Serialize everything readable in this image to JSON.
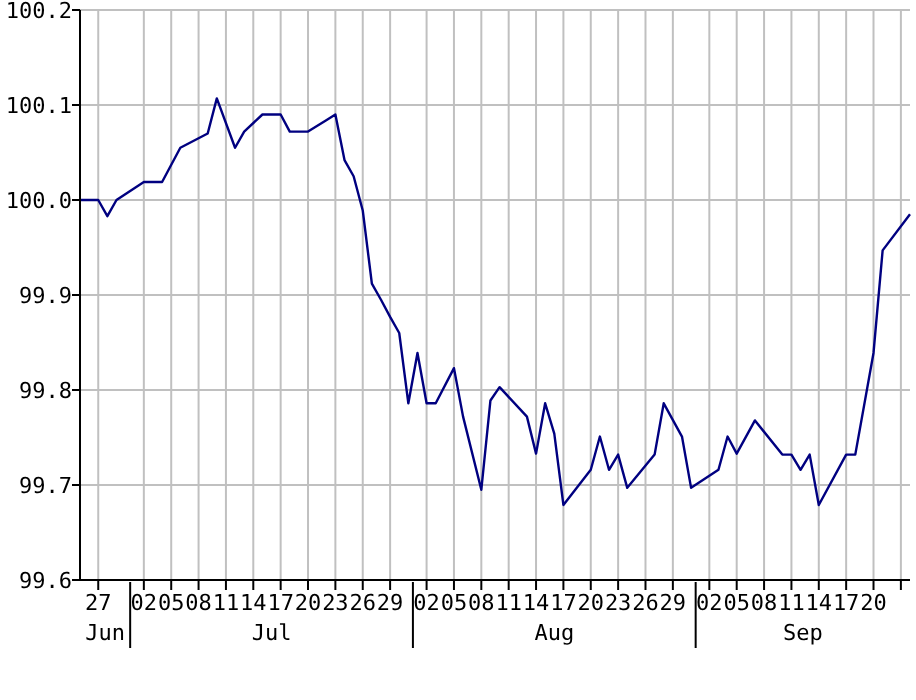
{
  "chart_data": {
    "type": "line",
    "x": [
      "--06-25",
      "--06-27",
      "--06-28",
      "--06-29",
      "--07-02",
      "--07-04",
      "--07-06",
      "--07-09",
      "--07-10",
      "--07-12",
      "--07-13",
      "--07-15",
      "--07-17",
      "--07-18",
      "--07-20",
      "--07-22",
      "--07-23",
      "--07-24",
      "--07-25",
      "--07-26",
      "--07-27",
      "--07-28",
      "--07-29",
      "--07-30",
      "--07-31",
      "--08-01",
      "--08-02",
      "--08-03",
      "--08-05",
      "--08-06",
      "--08-08",
      "--08-09",
      "--08-10",
      "--08-13",
      "--08-14",
      "--08-15",
      "--08-16",
      "--08-17",
      "--08-20",
      "--08-21",
      "--08-22",
      "--08-23",
      "--08-24",
      "--08-27",
      "--08-28",
      "--08-30",
      "--08-31",
      "--09-03",
      "--09-04",
      "--09-05",
      "--09-07",
      "--09-10",
      "--09-11",
      "--09-12",
      "--09-13",
      "--09-14",
      "--09-17",
      "--09-18",
      "--09-20",
      "--09-21",
      "--09-24"
    ],
    "series": [
      {
        "color": "#000080",
        "values": [
          100.0,
          100.0,
          99.983,
          100.0,
          100.019,
          100.019,
          100.055,
          100.07,
          100.107,
          100.055,
          100.072,
          100.09,
          100.09,
          100.072,
          100.072,
          100.084,
          100.09,
          100.042,
          100.025,
          99.989,
          99.912,
          99.895,
          99.877,
          99.86,
          99.786,
          99.839,
          99.786,
          99.786,
          99.823,
          99.772,
          99.695,
          99.789,
          99.803,
          99.772,
          99.733,
          99.786,
          99.754,
          99.679,
          99.716,
          99.751,
          99.716,
          99.732,
          99.697,
          99.732,
          99.786,
          99.751,
          99.697,
          99.716,
          99.751,
          99.733,
          99.768,
          99.732,
          99.732,
          99.716,
          99.732,
          99.679,
          99.732,
          99.732,
          99.839,
          99.947,
          99.985
        ]
      }
    ],
    "xlim": [
      "--06-25",
      "--09-24"
    ],
    "xticks": [
      {
        "value": "--06-27",
        "label": "27"
      },
      {
        "value": "--07-02",
        "label": "02"
      },
      {
        "value": "--07-05",
        "label": "05"
      },
      {
        "value": "--07-08",
        "label": "08"
      },
      {
        "value": "--07-11",
        "label": "11"
      },
      {
        "value": "--07-14",
        "label": "14"
      },
      {
        "value": "--07-17",
        "label": "17"
      },
      {
        "value": "--07-20",
        "label": "20"
      },
      {
        "value": "--07-23",
        "label": "23"
      },
      {
        "value": "--07-26",
        "label": "26"
      },
      {
        "value": "--07-29",
        "label": "29"
      },
      {
        "value": "--08-02",
        "label": "02"
      },
      {
        "value": "--08-05",
        "label": "05"
      },
      {
        "value": "--08-08",
        "label": "08"
      },
      {
        "value": "--08-11",
        "label": "11"
      },
      {
        "value": "--08-14",
        "label": "14"
      },
      {
        "value": "--08-17",
        "label": "17"
      },
      {
        "value": "--08-20",
        "label": "20"
      },
      {
        "value": "--08-23",
        "label": "23"
      },
      {
        "value": "--08-26",
        "label": "26"
      },
      {
        "value": "--08-29",
        "label": "29"
      },
      {
        "value": "--09-02",
        "label": "02"
      },
      {
        "value": "--09-05",
        "label": "05"
      },
      {
        "value": "--09-08",
        "label": "08"
      },
      {
        "value": "--09-11",
        "label": "11"
      },
      {
        "value": "--09-14",
        "label": "14"
      },
      {
        "value": "--09-17",
        "label": "17"
      },
      {
        "value": "--09-20",
        "label": "20"
      },
      {
        "value": "--09-23",
        "label": null
      }
    ],
    "ylim": [
      99.6,
      100.2
    ],
    "yticks": [
      {
        "value": 99.6,
        "label": "99.6"
      },
      {
        "value": 99.7,
        "label": "99.7"
      },
      {
        "value": 99.8,
        "label": "99.8"
      },
      {
        "value": 99.9,
        "label": "99.9"
      },
      {
        "value": 100.0,
        "label": "100.0"
      },
      {
        "value": 100.1,
        "label": "100.1"
      },
      {
        "value": 100.2,
        "label": "100.2"
      }
    ],
    "grid": true,
    "marker": "none",
    "line_style": "solid",
    "annotations": [
      "Jun",
      "Jul",
      "Aug",
      "Sep"
    ]
  }
}
